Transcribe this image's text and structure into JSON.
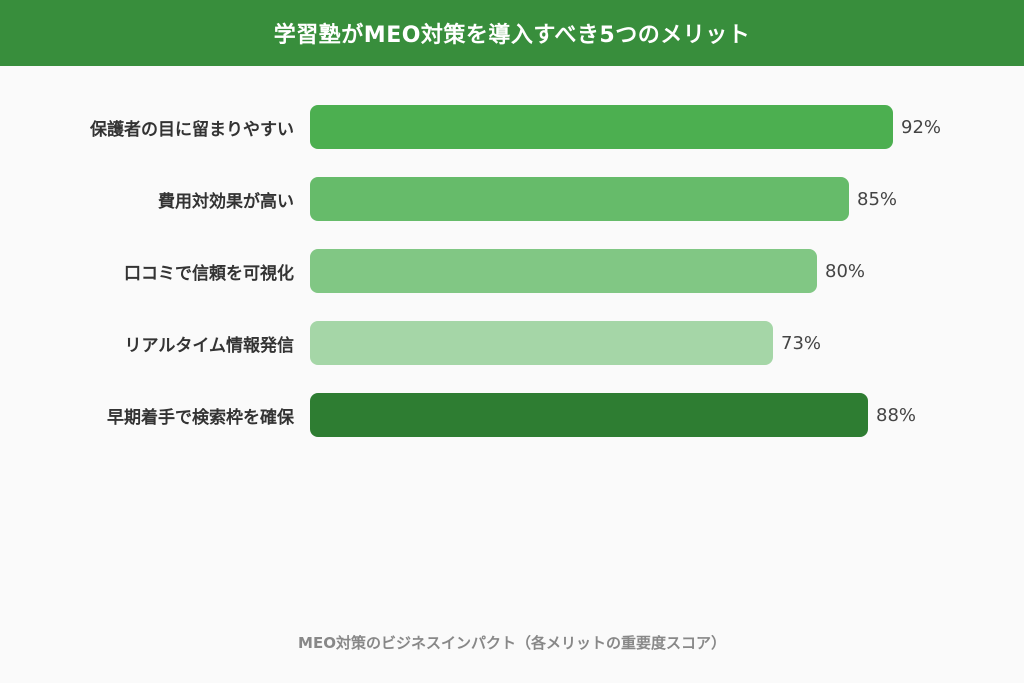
{
  "header": {
    "title": "学習塾がMEO対策を導入すべき5つのメリット"
  },
  "caption": "MEO対策のビジネスインパクト（各メリットの重要度スコア）",
  "colors": {
    "header_bg": "#388e3c",
    "background": "#fafafa",
    "bars": [
      "#4caf50",
      "#66bb6a",
      "#81c784",
      "#a5d6a7",
      "#2e7d32"
    ]
  },
  "rows": [
    {
      "label": "保護者の目に留まりやすい",
      "value": 92,
      "value_label": "92%",
      "color": "#4caf50"
    },
    {
      "label": "費用対効果が高い",
      "value": 85,
      "value_label": "85%",
      "color": "#66bb6a"
    },
    {
      "label": "口コミで信頼を可視化",
      "value": 80,
      "value_label": "80%",
      "color": "#81c784"
    },
    {
      "label": "リアルタイム情報発信",
      "value": 73,
      "value_label": "73%",
      "color": "#a5d6a7"
    },
    {
      "label": "早期着手で検索枠を確保",
      "value": 88,
      "value_label": "88%",
      "color": "#2e7d32"
    }
  ],
  "chart_data": {
    "type": "bar",
    "orientation": "horizontal",
    "title": "学習塾がMEO対策を導入すべき5つのメリット",
    "categories": [
      "保護者の目に留まりやすい",
      "費用対効果が高い",
      "口コミで信頼を可視化",
      "リアルタイム情報発信",
      "早期着手で検索枠を確保"
    ],
    "values": [
      92,
      85,
      80,
      73,
      88
    ],
    "value_labels": [
      "92%",
      "85%",
      "80%",
      "73%",
      "88%"
    ],
    "xlabel": "MEO対策のビジネスインパクト（各メリットの重要度スコア）",
    "ylabel": "",
    "xlim": [
      0,
      100
    ],
    "grid": false,
    "legend": null
  }
}
